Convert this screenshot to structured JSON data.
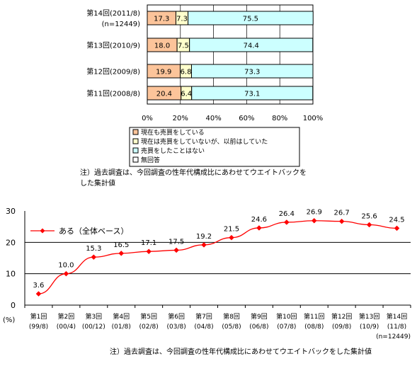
{
  "chart_data": [
    {
      "type": "bar",
      "stacked": true,
      "orientation": "horizontal",
      "categories": [
        [
          "第14回(2011/8)",
          "(n=12449)"
        ],
        [
          "第13回(2010/9)"
        ],
        [
          "第12回(2009/8)"
        ],
        [
          "第11回(2008/8)"
        ]
      ],
      "series": [
        {
          "name": "現在も売買をしている",
          "values": [
            17.3,
            18.0,
            19.9,
            20.4
          ],
          "color": "#fcc49a"
        },
        {
          "name": "現在は売買をしていないが、以前はしていた",
          "values": [
            7.3,
            7.5,
            6.8,
            6.4
          ],
          "color": "#ffffcc"
        },
        {
          "name": "売買をしたことはない",
          "values": [
            75.5,
            74.4,
            73.3,
            73.1
          ],
          "color": "#ccffff"
        },
        {
          "name": "無回答",
          "values": [
            0,
            0,
            0,
            0
          ],
          "color": "#ffffff"
        }
      ],
      "xlim": [
        0,
        100
      ],
      "xticks": [
        "0%",
        "20%",
        "40%",
        "60%",
        "80%",
        "100%"
      ],
      "grid": true,
      "legend_position": "bottom",
      "note": [
        "注）過去調査は、今回調査の性年代構成比にあわせてウエイトバックを",
        "した集計値"
      ]
    },
    {
      "type": "line",
      "categories": [
        [
          "第1回",
          "(99/8)"
        ],
        [
          "第2回",
          "(00/4)"
        ],
        [
          "第3回",
          "(00/12)"
        ],
        [
          "第4回",
          "(01/8)"
        ],
        [
          "第5回",
          "(02/8)"
        ],
        [
          "第6回",
          "(03/8)"
        ],
        [
          "第7回",
          "(04/8)"
        ],
        [
          "第8回",
          "(05/8)"
        ],
        [
          "第9回",
          "(06/8)"
        ],
        [
          "第10回",
          "(07/8)"
        ],
        [
          "第11回",
          "(08/8)"
        ],
        [
          "第12回",
          "(09/8)"
        ],
        [
          "第13回",
          "(10/9)"
        ],
        [
          "第14回",
          "(11/8)"
        ]
      ],
      "series": [
        {
          "name": "ある（全体ベース）",
          "values": [
            3.6,
            10.0,
            15.3,
            16.5,
            17.1,
            17.5,
            19.2,
            21.5,
            24.6,
            26.4,
            26.9,
            26.7,
            25.6,
            24.5
          ],
          "color": "#ff0000"
        }
      ],
      "data_labels": [
        "3.6",
        "10.0",
        "15.3",
        "16.5",
        "17.1",
        "17.5",
        "19.2",
        "21.5",
        "24.6",
        "26.4",
        "26.9",
        "26.7",
        "25.6",
        "24.5"
      ],
      "ylim": [
        0,
        30
      ],
      "yticks": [
        "0",
        "10",
        "20",
        "30"
      ],
      "ylabel": "(%)",
      "grid": true,
      "legend_position": "top-left",
      "sample_note": "(n=12449)",
      "note": "注）過去調査は、今回調査の性年代構成比にあわせてウエイトバックをした集計値"
    }
  ]
}
